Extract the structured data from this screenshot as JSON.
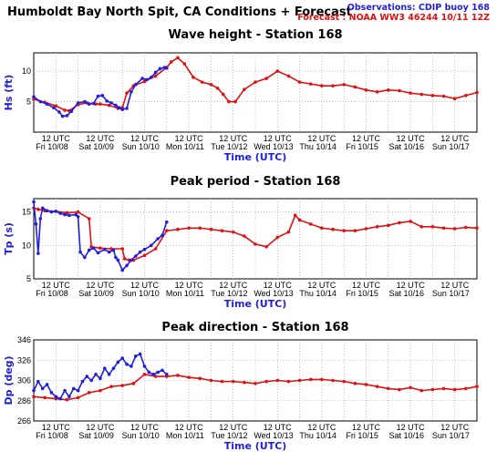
{
  "header": {
    "title": "Humboldt Bay North Spit, CA Conditions + Forecast",
    "obs_label": "Observations: CDIP buoy 168",
    "fc_label": "Forecast : NOAA WW3 46244 10/11 12Z"
  },
  "colors": {
    "observations": "#1f1fdc",
    "forecast": "#e01010",
    "grid": "#9a9a9a"
  },
  "x_axis": {
    "tick_top": "12 UTC",
    "day_labels": [
      "Fri 10/08",
      "Sat 10/09",
      "Sun 10/10",
      "Mon 10/11",
      "Tue 10/12",
      "Wed 10/13",
      "Thu 10/14",
      "Fri 10/15",
      "Sat 10/16",
      "Sun 10/17"
    ],
    "xlabel": "Time (UTC)",
    "range_days": [
      0,
      10
    ]
  },
  "chart_data": [
    {
      "type": "line",
      "title": "Wave height - Station 168",
      "ylabel": "Hs (ft)",
      "ylim": [
        0,
        13
      ],
      "yticks": [
        5,
        10
      ],
      "grid": true,
      "x_units": "days since Fri 10/08 00 UTC",
      "series": [
        {
          "name": "Observations: CDIP buoy 168",
          "x": [
            0,
            0.3,
            0.6,
            0.9,
            1.15,
            1.3,
            1.5,
            1.7,
            2.0,
            2.3,
            2.5,
            2.7,
            2.9,
            3.1,
            3.3,
            3.5,
            3.7,
            3.85,
            4.0,
            4.2,
            4.4,
            4.6,
            4.9,
            5.1,
            5.3,
            5.5,
            5.7,
            5.9,
            6.0
          ],
          "y": [
            5.8,
            5.0,
            4.6,
            4.0,
            3.3,
            2.6,
            2.7,
            3.4,
            4.8,
            5.0,
            4.6,
            4.7,
            5.9,
            6.0,
            5.1,
            4.8,
            4.4,
            4.0,
            3.7,
            3.9,
            6.6,
            7.8,
            8.8,
            8.6,
            9.0,
            9.8,
            10.4,
            10.6,
            10.5
          ]
        },
        {
          "name": "Forecast : NOAA WW3 46244 10/11 12Z",
          "x": [
            0,
            0.5,
            1.0,
            1.4,
            1.6,
            2.0,
            2.4,
            2.8,
            3.0,
            3.4,
            3.8,
            4.0,
            4.2,
            4.5,
            5.0,
            5.5,
            6.0,
            6.2,
            6.5,
            6.8,
            7.2,
            7.6,
            8.0,
            8.3,
            8.55,
            8.8,
            9.1,
            9.5,
            10.0,
            10.5,
            11.0,
            11.5,
            12.0,
            12.5,
            13.0,
            13.5,
            14.0,
            14.5,
            15.0,
            15.5,
            16.0,
            16.5,
            17.0,
            17.5,
            18.0,
            18.5,
            19.0,
            19.5,
            20.0
          ],
          "y": [
            5.4,
            4.9,
            4.3,
            3.6,
            3.5,
            4.5,
            4.8,
            4.6,
            4.6,
            4.4,
            3.9,
            4.0,
            6.4,
            7.6,
            8.3,
            9.2,
            10.6,
            11.5,
            12.2,
            11.2,
            9.0,
            8.2,
            7.8,
            7.2,
            6.2,
            5.0,
            5.0,
            7.0,
            8.2,
            8.8,
            10.0,
            9.2,
            8.2,
            7.9,
            7.6,
            7.6,
            7.8,
            7.4,
            6.9,
            6.6,
            6.9,
            6.8,
            6.4,
            6.2,
            6.0,
            5.9,
            5.5,
            6.0,
            6.5
          ]
        }
      ]
    },
    {
      "type": "line",
      "title": "Peak period - Station 168",
      "ylabel": "Tp (s)",
      "ylim": [
        5,
        17
      ],
      "yticks": [
        5,
        10,
        15
      ],
      "grid": true,
      "x_units": "days since Fri 10/08 00 UTC",
      "series": [
        {
          "name": "Observations: CDIP buoy 168",
          "x": [
            0,
            0.1,
            0.2,
            0.3,
            0.4,
            0.6,
            0.8,
            1.0,
            1.2,
            1.4,
            1.6,
            1.9,
            2.0,
            2.1,
            2.3,
            2.5,
            2.7,
            2.9,
            3.2,
            3.4,
            3.6,
            3.7,
            3.8,
            4.0,
            4.2,
            4.4,
            4.6,
            4.8,
            5.0,
            5.3,
            5.6,
            5.8,
            6.0
          ],
          "y": [
            16.5,
            13.2,
            8.8,
            14.0,
            15.6,
            15.2,
            15.0,
            15.1,
            14.8,
            14.6,
            14.5,
            14.6,
            14.3,
            9.0,
            8.2,
            9.3,
            9.6,
            8.9,
            9.4,
            9.0,
            9.3,
            8.2,
            7.8,
            6.3,
            7.0,
            7.8,
            8.4,
            9.0,
            9.4,
            10.0,
            11.0,
            11.5,
            13.5
          ]
        },
        {
          "name": "Forecast : NOAA WW3 46244 10/11 12Z",
          "x": [
            0,
            0.2,
            0.5,
            1.0,
            1.5,
            2.0,
            2.5,
            2.6,
            3.0,
            3.5,
            4.0,
            4.1,
            4.3,
            4.5,
            5.0,
            5.5,
            6.0,
            6.5,
            7.0,
            7.5,
            8.0,
            8.5,
            9.0,
            9.5,
            10.0,
            10.5,
            11.0,
            11.5,
            11.8,
            12.0,
            12.5,
            13.0,
            13.5,
            14.0,
            14.5,
            15.0,
            15.5,
            16.0,
            16.5,
            17.0,
            17.5,
            18.0,
            18.5,
            19.0,
            19.5,
            20.0
          ],
          "y": [
            15.6,
            15.4,
            15.2,
            15.1,
            14.9,
            15.0,
            14.0,
            9.8,
            9.6,
            9.5,
            9.5,
            8.0,
            7.8,
            7.8,
            8.5,
            9.5,
            12.2,
            12.4,
            12.6,
            12.6,
            12.4,
            12.2,
            12.0,
            11.4,
            10.2,
            9.8,
            11.2,
            12.0,
            14.5,
            13.8,
            13.2,
            12.6,
            12.4,
            12.2,
            12.2,
            12.5,
            12.8,
            13.0,
            13.4,
            13.6,
            12.8,
            12.8,
            12.6,
            12.5,
            12.7,
            12.6
          ]
        }
      ]
    },
    {
      "type": "line",
      "title": "Peak direction - Station 168",
      "ylabel": "Dp (deg)",
      "ylim": [
        266,
        346
      ],
      "yticks": [
        266,
        286,
        306,
        326,
        346
      ],
      "grid": true,
      "x_units": "days since Fri 10/08 00 UTC",
      "series": [
        {
          "name": "Observations: CDIP buoy 168",
          "x": [
            0,
            0.2,
            0.4,
            0.6,
            0.8,
            1.0,
            1.2,
            1.4,
            1.6,
            1.8,
            2.0,
            2.2,
            2.4,
            2.6,
            2.8,
            3.0,
            3.2,
            3.4,
            3.6,
            3.8,
            4.0,
            4.2,
            4.4,
            4.6,
            4.8,
            5.0,
            5.2,
            5.4,
            5.6,
            5.8,
            6.0
          ],
          "y": [
            296,
            305,
            298,
            302,
            294,
            290,
            288,
            296,
            290,
            298,
            296,
            305,
            310,
            306,
            312,
            308,
            318,
            312,
            318,
            324,
            328,
            322,
            320,
            330,
            332,
            320,
            314,
            312,
            314,
            316,
            312
          ]
        },
        {
          "name": "Forecast : NOAA WW3 46244 10/11 12Z",
          "x": [
            0,
            0.5,
            1.0,
            1.5,
            2.0,
            2.5,
            3.0,
            3.5,
            4.0,
            4.5,
            5.0,
            5.5,
            6.0,
            6.5,
            7.0,
            7.5,
            8.0,
            8.5,
            9.0,
            9.5,
            10.0,
            10.5,
            11.0,
            11.5,
            12.0,
            12.5,
            13.0,
            13.5,
            14.0,
            14.5,
            15.0,
            15.5,
            16.0,
            16.5,
            17.0,
            17.5,
            18.0,
            18.5,
            19.0,
            19.5,
            20.0
          ],
          "y": [
            290,
            289,
            288,
            287,
            289,
            294,
            296,
            300,
            301,
            303,
            312,
            310,
            310,
            311,
            309,
            308,
            306,
            305,
            305,
            304,
            303,
            305,
            306,
            305,
            306,
            307,
            307,
            306,
            305,
            303,
            302,
            300,
            298,
            297,
            299,
            296,
            297,
            298,
            297,
            298,
            300
          ]
        }
      ]
    }
  ]
}
